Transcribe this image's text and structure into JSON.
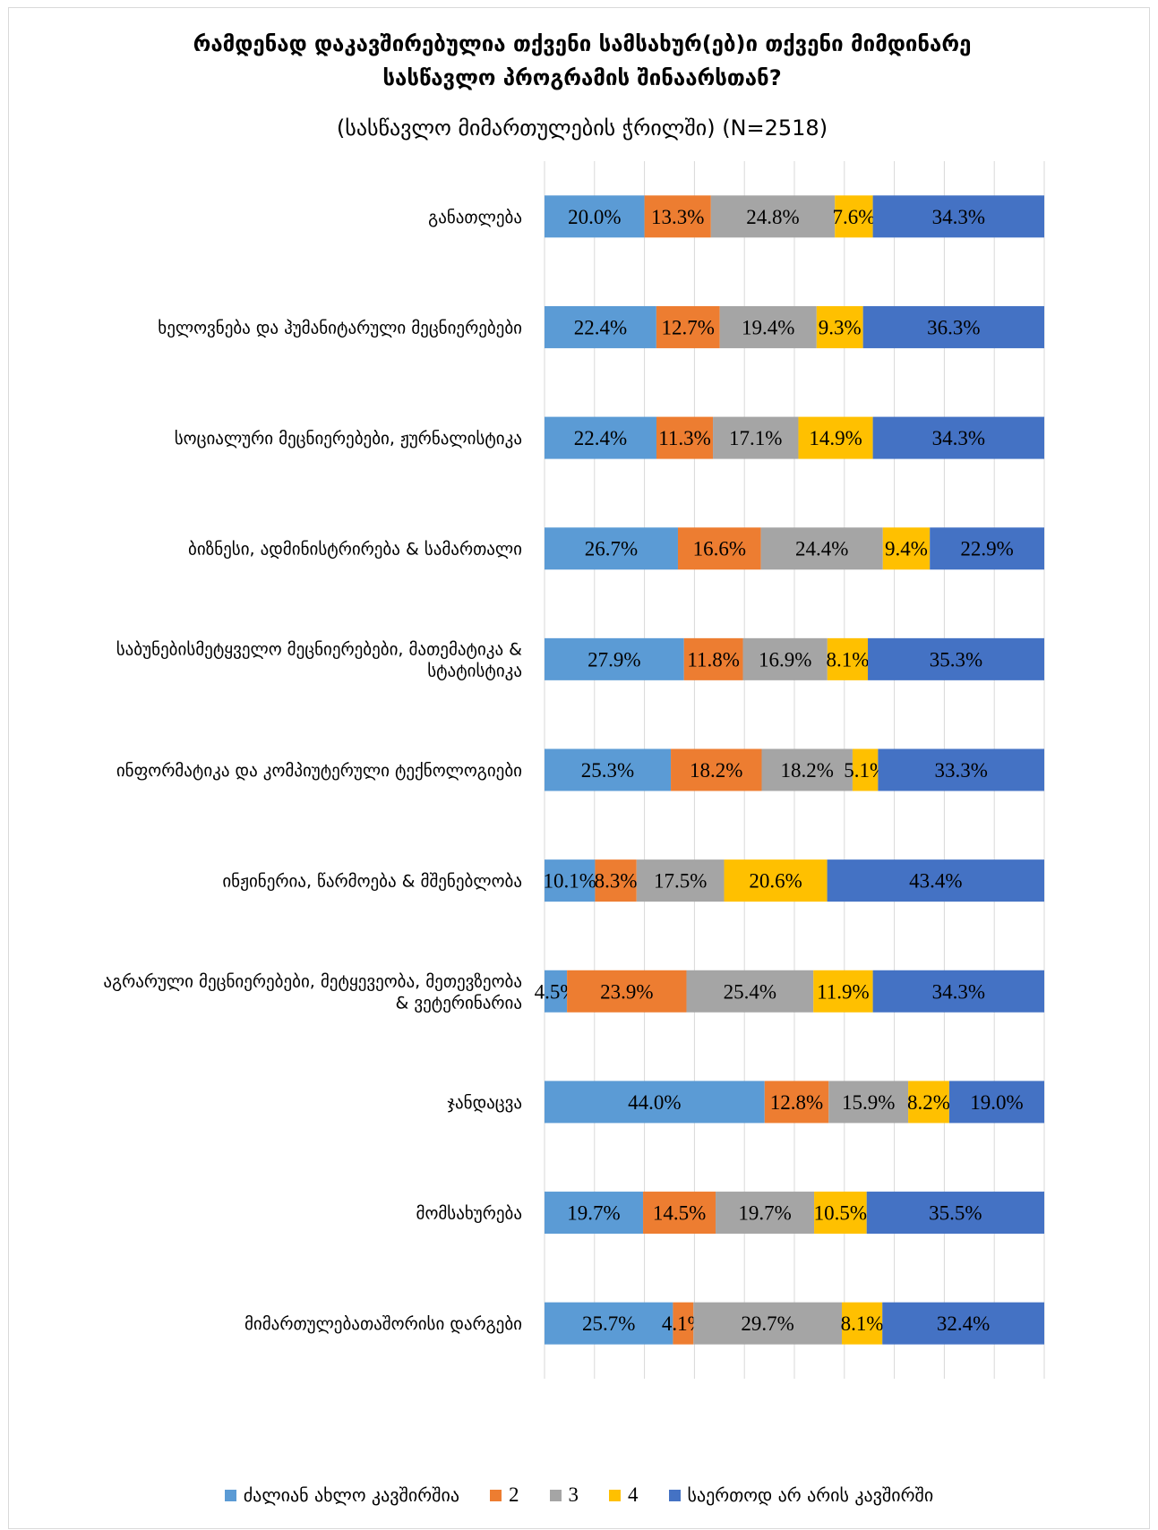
{
  "title": "რამდენად დაკავშირებულია თქვენი სამსახურ(ებ)ი თქვენი მიმდინარე სასწავლო პროგრამის შინაარსთან?",
  "title_line1": "რამდენად დაკავშირებულია თქვენი სამსახურ(ებ)ი თქვენი მიმდინარე",
  "title_line2": "სასწავლო პროგრამის შინაარსთან?",
  "subtitle": "(სასწავლო მიმართულების ჭრილში) (N=2518)",
  "chart_data": {
    "type": "bar",
    "orientation": "horizontal",
    "stacked": "percent",
    "value_format": "percent, 1 decimal",
    "xlim": [
      0,
      100
    ],
    "grid": "vertical, every 10%",
    "legend_position": "bottom",
    "categories": [
      "განათლება",
      "ხელოვნება და ჰუმანიტარული მეცნიერებები",
      "სოციალური მეცნიერებები, ჟურნალისტიკა",
      "ბიზნესი, ადმინისტრირება & სამართალი",
      "საბუნებისმეტყველო მეცნიერებები, მათემატიკა & სტატისტიკა",
      "ინფორმატიკა და კომპიუტერული ტექნოლოგიები",
      "ინჟინერია, წარმოება & მშენებლობა",
      "აგრარული მეცნიერებები, მეტყევეობა, მეთევზეობა & ვეტერინარია",
      "ჯანდაცვა",
      "მომსახურება",
      "მიმართულებათაშორისი დარგები"
    ],
    "category_lines": [
      [
        "განათლება"
      ],
      [
        "ხელოვნება და ჰუმანიტარული მეცნიერებები"
      ],
      [
        "სოციალური მეცნიერებები, ჟურნალისტიკა"
      ],
      [
        "ბიზნესი, ადმინისტრირება & სამართალი"
      ],
      [
        "საბუნებისმეტყველო მეცნიერებები, მათემატიკა &",
        "სტატისტიკა"
      ],
      [
        "ინფორმატიკა და კომპიუტერული ტექნოლოგიები"
      ],
      [
        "ინჟინერია, წარმოება & მშენებლობა"
      ],
      [
        "აგრარული მეცნიერებები, მეტყევეობა, მეთევზეობა",
        "& ვეტერინარია"
      ],
      [
        "ჯანდაცვა"
      ],
      [
        "მომსახურება"
      ],
      [
        "მიმართულებათაშორისი დარგები"
      ]
    ],
    "series": [
      {
        "name": "ძალიან ახლო კავშირშია",
        "color": "#5b9bd5",
        "values": [
          20.0,
          22.4,
          22.4,
          26.7,
          27.9,
          25.3,
          10.1,
          4.5,
          44.0,
          19.7,
          25.7
        ]
      },
      {
        "name": "2",
        "color": "#ed7d31",
        "values": [
          13.3,
          12.7,
          11.3,
          16.6,
          11.8,
          18.2,
          8.3,
          23.9,
          12.8,
          14.5,
          4.1
        ]
      },
      {
        "name": "3",
        "color": "#a5a5a5",
        "values": [
          24.8,
          19.4,
          17.1,
          24.4,
          16.9,
          18.2,
          17.5,
          25.4,
          15.9,
          19.7,
          29.7
        ]
      },
      {
        "name": "4",
        "color": "#ffc000",
        "values": [
          7.6,
          9.3,
          14.9,
          9.4,
          8.1,
          5.1,
          20.6,
          11.9,
          8.2,
          10.5,
          8.1
        ]
      },
      {
        "name": "საერთოდ არ არის კავშირში",
        "color": "#4472c4",
        "values": [
          34.3,
          36.3,
          34.3,
          22.9,
          35.3,
          33.3,
          43.4,
          34.3,
          19.0,
          35.5,
          32.4
        ]
      }
    ]
  }
}
